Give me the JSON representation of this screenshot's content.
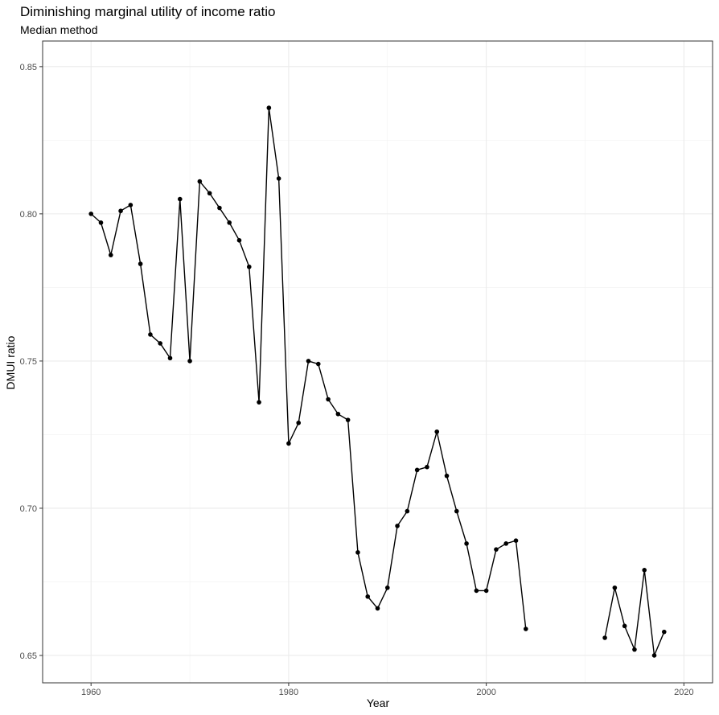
{
  "chart_data": {
    "type": "line",
    "title": "Diminishing marginal utility of income ratio",
    "subtitle": "Median method",
    "xlabel": "Year",
    "ylabel": "DMUI ratio",
    "xlim": [
      1955.1,
      2022.9
    ],
    "ylim": [
      0.6407,
      0.8587
    ],
    "xticks": [
      1960,
      1980,
      2000,
      2020
    ],
    "yticks": [
      0.65,
      0.7,
      0.75,
      0.8,
      0.85
    ],
    "xtick_labels": [
      "1960",
      "1980",
      "2000",
      "2020"
    ],
    "ytick_labels": [
      "0.65",
      "0.70",
      "0.75",
      "0.80",
      "0.85"
    ],
    "grid": true,
    "legend": "none",
    "series": [
      {
        "color": "#000000",
        "segments": [
          {
            "x": [
              1960,
              1961,
              1962,
              1963,
              1964,
              1965,
              1966,
              1967,
              1968,
              1969,
              1970,
              1971,
              1972,
              1973,
              1974,
              1975,
              1976,
              1977,
              1978,
              1979,
              1980,
              1981,
              1982,
              1983,
              1984,
              1985,
              1986,
              1987,
              1988,
              1989,
              1990,
              1991,
              1992,
              1993,
              1994,
              1995,
              1996,
              1997,
              1998,
              1999,
              2000,
              2001,
              2002,
              2003,
              2004
            ],
            "y": [
              0.8,
              0.797,
              0.786,
              0.801,
              0.803,
              0.783,
              0.759,
              0.756,
              0.751,
              0.805,
              0.75,
              0.811,
              0.807,
              0.802,
              0.797,
              0.791,
              0.782,
              0.736,
              0.836,
              0.812,
              0.722,
              0.729,
              0.75,
              0.749,
              0.737,
              0.732,
              0.73,
              0.685,
              0.67,
              0.666,
              0.673,
              0.694,
              0.699,
              0.713,
              0.714,
              0.726,
              0.711,
              0.699,
              0.688,
              0.672,
              0.672,
              0.686,
              0.688,
              0.689,
              0.659
            ]
          },
          {
            "x": [
              2012,
              2013,
              2014,
              2015,
              2016,
              2017,
              2018
            ],
            "y": [
              0.656,
              0.673,
              0.66,
              0.652,
              0.679,
              0.65,
              0.658
            ]
          }
        ]
      }
    ]
  }
}
